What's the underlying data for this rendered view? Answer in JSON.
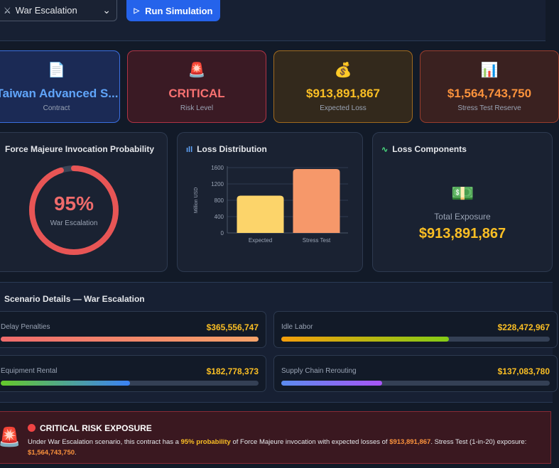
{
  "toolbar": {
    "scenario_select": "War Escalation",
    "run_label": "Run Simulation"
  },
  "cards": [
    {
      "icon": "📄",
      "value": "Taiwan Advanced S...",
      "label": "Contract"
    },
    {
      "icon": "🚨",
      "value": "CRITICAL",
      "label": "Risk Level"
    },
    {
      "icon": "💰",
      "value": "$913,891,867",
      "label": "Expected Loss"
    },
    {
      "icon": "📊",
      "value": "$1,564,743,750",
      "label": "Stress Test Reserve"
    }
  ],
  "probability": {
    "title": "Force Majeure Invocation Probability",
    "value": "95%",
    "fraction": 0.95,
    "label": "War Escalation"
  },
  "loss_distribution": {
    "title": "Loss Distribution"
  },
  "chart_data": {
    "type": "bar",
    "categories": [
      "Expected",
      "Stress Test"
    ],
    "values": [
      913.9,
      1564.7
    ],
    "ylabel": "Million USD",
    "ylim": [
      0,
      1600
    ],
    "yticks": [
      "0",
      "400",
      "800",
      "1200",
      "1600"
    ],
    "colors": [
      "#fcd46a",
      "#f6986a"
    ],
    "grid": true
  },
  "loss_components": {
    "title": "Loss Components",
    "icon": "💵",
    "total_label": "Total Exposure",
    "total_value": "$913,891,867"
  },
  "scenario": {
    "title": "Scenario Details — War Escalation",
    "items": [
      {
        "name": "Delay Penalties",
        "value": "$365,556,747",
        "fraction": 1.0,
        "gradient": [
          "#ef6b6b",
          "#f6a36a"
        ]
      },
      {
        "name": "Idle Labor",
        "value": "$228,472,967",
        "fraction": 0.625,
        "gradient": [
          "#f59e0b",
          "#84cc16"
        ]
      },
      {
        "name": "Equipment Rental",
        "value": "$182,778,373",
        "fraction": 0.5,
        "gradient": [
          "#65c92a",
          "#3b82f6"
        ]
      },
      {
        "name": "Supply Chain Rerouting",
        "value": "$137,083,780",
        "fraction": 0.375,
        "gradient": [
          "#5b8cf0",
          "#a855f7"
        ]
      }
    ]
  },
  "alert": {
    "icon": "🚨",
    "title": "CRITICAL RISK EXPOSURE",
    "text_1": "Under War Escalation scenario, this contract has a ",
    "prob": "95% probability",
    "text_2": " of Force Majeure invocation with expected losses of ",
    "expected": "$913,891,867",
    "text_3": ". Stress Test (1-in-20) exposure: ",
    "stress": "$1,564,743,750",
    "text_4": "."
  },
  "colors": {
    "accent": "#2563eb",
    "critical": "#f87171",
    "amber": "#fbbf24",
    "orange": "#fb923c"
  }
}
